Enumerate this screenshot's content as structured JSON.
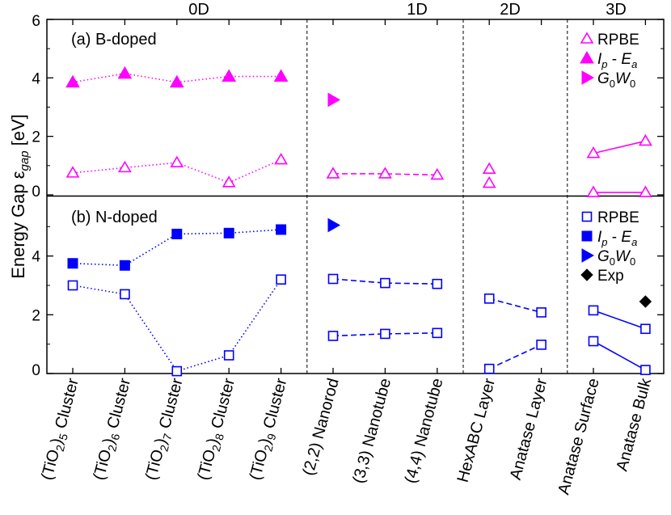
{
  "chart_data": {
    "type": "scatter",
    "ylabel": "Energy Gap ε_gap [eV]",
    "categories": [
      "(TiO2)5 Cluster",
      "(TiO2)6 Cluster",
      "(TiO2)7 Cluster",
      "(TiO2)8 Cluster",
      "(TiO2)9 Cluster",
      "(2,2) Nanorod",
      "(3,3) Nanotube",
      "(4,4) Nanotube",
      "HexABC Layer",
      "Anatase Layer",
      "Anatase Surface",
      "Anatase Bulk"
    ],
    "dimension_groups": [
      {
        "label": "0D",
        "start": 0,
        "end": 4
      },
      {
        "label": "1D",
        "start": 5,
        "end": 7
      },
      {
        "label": "2D",
        "start": 8,
        "end": 9
      },
      {
        "label": "3D",
        "start": 10,
        "end": 11
      }
    ],
    "panels": [
      {
        "id": "b-doped",
        "title": "(a) B-doped",
        "color": "#ff00ff",
        "ylim": [
          0,
          6
        ],
        "yticks": [
          0,
          2,
          4,
          6
        ],
        "series": [
          {
            "name": "RPBE",
            "marker": "triangle-up-open",
            "points": [
              {
                "x": 0,
                "y": 0.75
              },
              {
                "x": 1,
                "y": 0.93
              },
              {
                "x": 2,
                "y": 1.1
              },
              {
                "x": 3,
                "y": 0.42
              },
              {
                "x": 4,
                "y": 1.2
              },
              {
                "x": 5,
                "y": 0.72
              },
              {
                "x": 6,
                "y": 0.72
              },
              {
                "x": 7,
                "y": 0.68
              },
              {
                "x": 8,
                "y": 0.88
              },
              {
                "x": 8,
                "y": 0.4
              },
              {
                "x": 10,
                "y": 1.42
              },
              {
                "x": 11,
                "y": 1.84
              },
              {
                "x": 10,
                "y": 0.08
              },
              {
                "x": 11,
                "y": 0.08
              }
            ],
            "lines": [
              {
                "style": "dotted",
                "points": [
                  0,
                  1,
                  2,
                  3,
                  4
                ]
              },
              {
                "style": "dashed",
                "points": [
                  5,
                  6,
                  7
                ]
              },
              {
                "style": "solid",
                "points": [
                  10,
                  11
                ]
              },
              {
                "style": "solid",
                "points": [
                  12,
                  13
                ]
              }
            ]
          },
          {
            "name": "I_p - E_a",
            "marker": "triangle-up-filled",
            "points": [
              {
                "x": 0,
                "y": 3.85
              },
              {
                "x": 1,
                "y": 4.15
              },
              {
                "x": 2,
                "y": 3.85
              },
              {
                "x": 3,
                "y": 4.05
              },
              {
                "x": 4,
                "y": 4.05
              }
            ],
            "lines": [
              {
                "style": "dotted",
                "points": [
                  0,
                  1,
                  2,
                  3,
                  4
                ]
              }
            ]
          },
          {
            "name": "G0W0",
            "marker": "triangle-right-filled",
            "points": [
              {
                "x": 5,
                "y": 3.25
              }
            ],
            "lines": []
          }
        ]
      },
      {
        "id": "n-doped",
        "title": "(b) N-doped",
        "color": "#0000ff",
        "ylim": [
          0,
          6
        ],
        "yticks": [
          0,
          2,
          4
        ],
        "series": [
          {
            "name": "RPBE",
            "marker": "square-open",
            "points": [
              {
                "x": 0,
                "y": 3.0
              },
              {
                "x": 1,
                "y": 2.7
              },
              {
                "x": 2,
                "y": 0.08
              },
              {
                "x": 3,
                "y": 0.62
              },
              {
                "x": 4,
                "y": 3.2
              },
              {
                "x": 5,
                "y": 3.22
              },
              {
                "x": 6,
                "y": 3.08
              },
              {
                "x": 7,
                "y": 3.05
              },
              {
                "x": 5,
                "y": 1.28
              },
              {
                "x": 6,
                "y": 1.35
              },
              {
                "x": 7,
                "y": 1.38
              },
              {
                "x": 8,
                "y": 2.55
              },
              {
                "x": 9,
                "y": 2.08
              },
              {
                "x": 8,
                "y": 0.16
              },
              {
                "x": 9,
                "y": 0.98
              },
              {
                "x": 10,
                "y": 2.15
              },
              {
                "x": 11,
                "y": 1.52
              },
              {
                "x": 10,
                "y": 1.1
              },
              {
                "x": 11,
                "y": 0.12
              }
            ],
            "lines": [
              {
                "style": "dotted",
                "points": [
                  0,
                  1,
                  2,
                  3,
                  4
                ]
              },
              {
                "style": "dashed",
                "points": [
                  5,
                  6,
                  7
                ]
              },
              {
                "style": "dashed",
                "points": [
                  8,
                  9,
                  10
                ]
              },
              {
                "style": "dashed",
                "points": [
                  11,
                  12
                ]
              },
              {
                "style": "dashed",
                "points": [
                  13,
                  14
                ]
              },
              {
                "style": "solid",
                "points": [
                  15,
                  16
                ]
              },
              {
                "style": "solid",
                "points": [
                  17,
                  18
                ]
              }
            ]
          },
          {
            "name": "I_p - E_a",
            "marker": "square-filled",
            "points": [
              {
                "x": 0,
                "y": 3.75
              },
              {
                "x": 1,
                "y": 3.68
              },
              {
                "x": 2,
                "y": 4.75
              },
              {
                "x": 3,
                "y": 4.78
              },
              {
                "x": 4,
                "y": 4.9
              }
            ],
            "lines": [
              {
                "style": "dotted",
                "points": [
                  0,
                  1,
                  2,
                  3,
                  4
                ]
              }
            ]
          },
          {
            "name": "G0W0",
            "marker": "triangle-right-filled",
            "points": [
              {
                "x": 5,
                "y": 5.05
              }
            ],
            "lines": []
          },
          {
            "name": "Exp",
            "marker": "diamond-filled",
            "color": "#000000",
            "points": [
              {
                "x": 11,
                "y": 2.45
              }
            ],
            "lines": []
          }
        ]
      }
    ]
  }
}
